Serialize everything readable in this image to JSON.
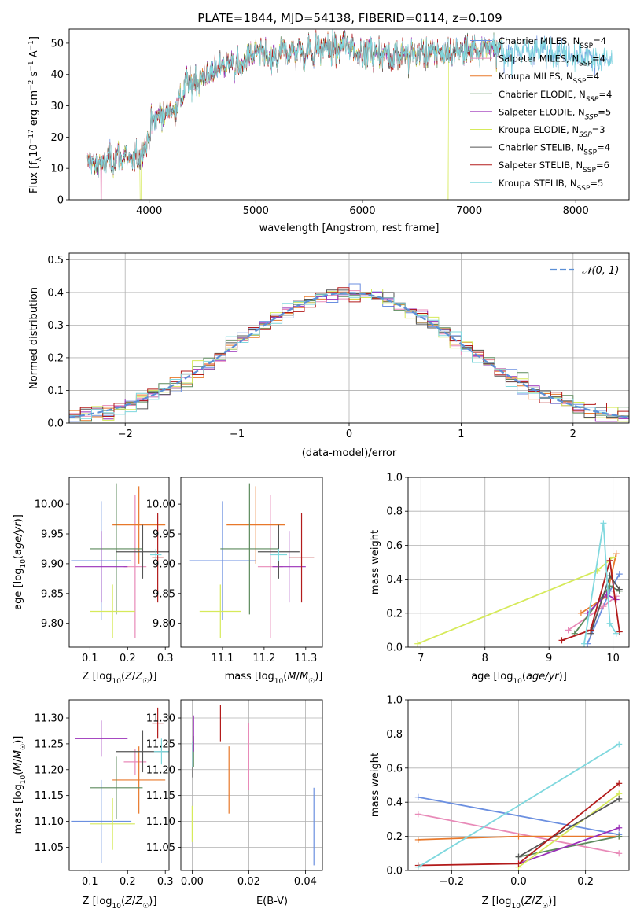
{
  "figure_title": "PLATE=1844, MJD=54138, FIBERID=0114, z=0.109",
  "colors": {
    "Chabrier MILES": "#6b8fe0",
    "Salpeter MILES": "#e88ab8",
    "Kroupa MILES": "#e8782a",
    "Chabrier ELODIE": "#5c8a5c",
    "Salpeter ELODIE": "#9a2fb8",
    "Kroupa ELODIE": "#d6ea5a",
    "Chabrier STELIB": "#555555",
    "Salpeter STELIB": "#b31b1b",
    "Kroupa STELIB": "#7fd8de",
    "normal": "#5b8fd6"
  },
  "chart_data": [
    {
      "id": "spectrum",
      "type": "line",
      "xlabel": "wavelength [Angstrom, rest frame]",
      "ylabel": "Flux [fλ10⁻¹⁷ erg cm⁻² s⁻¹ A⁻¹]",
      "xlim": [
        3250,
        8500
      ],
      "ylim": [
        0,
        54.5
      ],
      "xticks": [
        4000,
        5000,
        6000,
        7000,
        8000
      ],
      "yticks": [
        0,
        10,
        20,
        30,
        40,
        50
      ],
      "legend_position": "top-right",
      "continuum": {
        "x": [
          3450,
          3550,
          3650,
          3750,
          3850,
          3950,
          4050,
          4150,
          4250,
          4350,
          4450,
          4550,
          4650,
          4750,
          4850,
          4950,
          5050,
          5150,
          5250,
          5350,
          5450,
          5550,
          5650,
          5750,
          5850,
          5950,
          6050,
          6150,
          6250,
          6350,
          6450,
          6550,
          6650,
          6750,
          6850,
          6950,
          7050,
          7150,
          7250,
          7350,
          7450,
          7550,
          7650,
          7750,
          7850,
          7950,
          8050,
          8150,
          8250,
          8350
        ],
        "y": [
          12,
          11,
          13,
          14,
          12,
          16,
          26,
          28,
          29,
          37,
          38,
          40,
          42,
          44,
          42,
          46,
          47,
          44,
          47,
          48,
          47,
          48,
          49,
          48,
          50,
          47,
          47,
          47,
          46,
          47,
          46,
          47,
          47,
          47,
          47,
          48,
          48,
          49,
          48,
          46,
          48,
          47,
          48,
          47,
          47,
          47,
          46,
          46,
          44,
          45
        ]
      },
      "series": [
        {
          "name": "Chabrier MILES, N_SSP=4",
          "label_base": "Chabrier MILES, N",
          "label_sub": "SSP",
          "label_tail": "=4",
          "sub_italic": false
        },
        {
          "name": "Salpeter MILES, N_SSP=4",
          "label_base": "Salpeter MILES, N",
          "label_sub": "SSP",
          "label_tail": "=4",
          "sub_italic": false
        },
        {
          "name": "Kroupa MILES, N_SSP=4",
          "label_base": "Kroupa MILES, N",
          "label_sub": "SSP",
          "label_tail": "=4",
          "sub_italic": false
        },
        {
          "name": "Chabrier ELODIE, N_SSP=4",
          "label_base": "Chabrier ELODIE, N",
          "label_sub": "SSP",
          "label_tail": "=4",
          "sub_italic": true
        },
        {
          "name": "Salpeter ELODIE, N_SSP=5",
          "label_base": "Salpeter ELODIE, N",
          "label_sub": "SSP",
          "label_tail": "=5",
          "sub_italic": true
        },
        {
          "name": "Kroupa ELODIE, N_SSP=3",
          "label_base": "Kroupa ELODIE, N",
          "label_sub": "SSP",
          "label_tail": "=3",
          "sub_italic": true
        },
        {
          "name": "Chabrier STELIB, N_SSP=4",
          "label_base": "Chabrier STELIB, N",
          "label_sub": "SSP",
          "label_tail": "=4",
          "sub_italic": false
        },
        {
          "name": "Salpeter STELIB, N_SSP=6",
          "label_base": "Salpeter STELIB, N",
          "label_sub": "SSP",
          "label_tail": "=6",
          "sub_italic": false
        },
        {
          "name": "Kroupa STELIB, N_SSP=5",
          "label_base": "Kroupa STELIB, N",
          "label_sub": "SSP",
          "label_tail": "=5",
          "sub_italic": false
        }
      ],
      "dropouts": [
        {
          "series": "Salpeter MILES",
          "x": 3550
        },
        {
          "series": "Kroupa ELODIE",
          "x": 3920
        },
        {
          "series": "Kroupa ELODIE",
          "x": 6800
        },
        {
          "series": "Salpeter STELIB",
          "x": 7400
        }
      ]
    },
    {
      "id": "residuals",
      "type": "step",
      "xlabel": "(data-model)/error",
      "ylabel": "Normed distribution",
      "xlim": [
        -2.5,
        2.5
      ],
      "ylim": [
        0,
        0.52
      ],
      "xticks": [
        -2,
        -1,
        0,
        1,
        2
      ],
      "yticks": [
        0.0,
        0.1,
        0.2,
        0.3,
        0.4,
        0.5
      ],
      "grid": true,
      "legend_position": "top-right",
      "normal_label": "𝒩(0, 1)",
      "bin_edges_start": -2.5,
      "bin_width": 0.1
    },
    {
      "id": "age_vs_Z",
      "type": "errorbar",
      "xlabel": "Z [log10(Z/Z☉)]",
      "ylabel": "age [log10(age/yr)]",
      "xlim": [
        0.045,
        0.31
      ],
      "ylim": [
        9.76,
        10.045
      ],
      "xticks": [
        0.1,
        0.2,
        0.3
      ],
      "yticks": [
        9.8,
        9.85,
        9.9,
        9.95,
        10.0
      ],
      "points": [
        {
          "series": "Chabrier MILES",
          "x": 0.13,
          "xerr": 0.08,
          "y": 9.905,
          "yerr": 0.1
        },
        {
          "series": "Salpeter MILES",
          "x": 0.22,
          "xerr": 0.03,
          "y": 9.895,
          "yerr": 0.12
        },
        {
          "series": "Kroupa MILES",
          "x": 0.23,
          "xerr": 0.07,
          "y": 9.965,
          "yerr": 0.065
        },
        {
          "series": "Chabrier ELODIE",
          "x": 0.17,
          "xerr": 0.07,
          "y": 9.925,
          "yerr": 0.11
        },
        {
          "series": "Salpeter ELODIE",
          "x": 0.13,
          "xerr": 0.07,
          "y": 9.895,
          "yerr": 0.06
        },
        {
          "series": "Kroupa ELODIE",
          "x": 0.16,
          "xerr": 0.06,
          "y": 9.82,
          "yerr": 0.045
        },
        {
          "series": "Chabrier STELIB",
          "x": 0.24,
          "xerr": 0.07,
          "y": 9.92,
          "yerr": 0.045
        },
        {
          "series": "Salpeter STELIB",
          "x": 0.28,
          "xerr": 0.015,
          "y": 9.91,
          "yerr": 0.075
        },
        {
          "series": "Kroupa STELIB",
          "x": 0.275,
          "xerr": 0.015,
          "y": 9.915,
          "yerr": 0.01
        }
      ]
    },
    {
      "id": "age_vs_mass",
      "type": "errorbar",
      "xlabel": "mass [log10(M/M☉)]",
      "ylabel": "",
      "xlim": [
        11.0,
        11.34
      ],
      "ylim": [
        9.76,
        10.045
      ],
      "xticks": [
        11.1,
        11.2,
        11.3
      ],
      "yticks": [
        9.8,
        9.85,
        9.9,
        9.95,
        10.0
      ],
      "points": [
        {
          "series": "Chabrier MILES",
          "x": 11.1,
          "xerr": 0.08,
          "y": 9.905,
          "yerr": 0.1
        },
        {
          "series": "Salpeter MILES",
          "x": 11.215,
          "xerr": 0.03,
          "y": 9.895,
          "yerr": 0.12
        },
        {
          "series": "Kroupa MILES",
          "x": 11.18,
          "xerr": 0.07,
          "y": 9.965,
          "yerr": 0.065
        },
        {
          "series": "Chabrier ELODIE",
          "x": 11.165,
          "xerr": 0.07,
          "y": 9.925,
          "yerr": 0.11
        },
        {
          "series": "Salpeter ELODIE",
          "x": 11.26,
          "xerr": 0.04,
          "y": 9.895,
          "yerr": 0.06
        },
        {
          "series": "Kroupa ELODIE",
          "x": 11.095,
          "xerr": 0.05,
          "y": 9.82,
          "yerr": 0.045
        },
        {
          "series": "Chabrier STELIB",
          "x": 11.235,
          "xerr": 0.05,
          "y": 9.92,
          "yerr": 0.045
        },
        {
          "series": "Salpeter STELIB",
          "x": 11.29,
          "xerr": 0.03,
          "y": 9.91,
          "yerr": 0.075
        },
        {
          "series": "Kroupa STELIB",
          "x": 11.235,
          "xerr": 0.02,
          "y": 9.915,
          "yerr": 0.01
        }
      ]
    },
    {
      "id": "weight_vs_age",
      "type": "line",
      "xlabel": "age [log10(age/yr)]",
      "ylabel": "mass weight",
      "xlim": [
        6.8,
        10.25
      ],
      "ylim": [
        0,
        1
      ],
      "xticks": [
        7,
        8,
        9,
        10
      ],
      "yticks": [
        0.0,
        0.2,
        0.4,
        0.6,
        0.8,
        1.0
      ],
      "grid": true,
      "series": [
        {
          "series": "Chabrier MILES",
          "points": [
            [
              9.6,
              0.02
            ],
            [
              9.95,
              0.33
            ],
            [
              10.1,
              0.43
            ]
          ]
        },
        {
          "series": "Salpeter MILES",
          "points": [
            [
              9.3,
              0.1
            ],
            [
              9.85,
              0.24
            ],
            [
              10.05,
              0.3
            ]
          ]
        },
        {
          "series": "Kroupa MILES",
          "points": [
            [
              9.5,
              0.2
            ],
            [
              9.9,
              0.3
            ],
            [
              10.05,
              0.55
            ]
          ]
        },
        {
          "series": "Chabrier ELODIE",
          "points": [
            [
              9.4,
              0.08
            ],
            [
              9.95,
              0.36
            ],
            [
              10.1,
              0.33
            ]
          ]
        },
        {
          "series": "Salpeter ELODIE",
          "points": [
            [
              9.6,
              0.2
            ],
            [
              9.9,
              0.31
            ],
            [
              10.05,
              0.28
            ]
          ]
        },
        {
          "series": "Kroupa ELODIE",
          "points": [
            [
              6.95,
              0.02
            ],
            [
              9.75,
              0.45
            ],
            [
              10.0,
              0.53
            ]
          ]
        },
        {
          "series": "Chabrier STELIB",
          "points": [
            [
              9.65,
              0.08
            ],
            [
              9.95,
              0.42
            ],
            [
              10.1,
              0.34
            ]
          ]
        },
        {
          "series": "Salpeter STELIB",
          "points": [
            [
              9.2,
              0.04
            ],
            [
              9.65,
              0.1
            ],
            [
              9.95,
              0.51
            ],
            [
              10.1,
              0.09
            ]
          ]
        },
        {
          "series": "Kroupa STELIB",
          "points": [
            [
              9.55,
              0.02
            ],
            [
              9.85,
              0.73
            ],
            [
              9.95,
              0.14
            ],
            [
              10.05,
              0.08
            ]
          ]
        }
      ]
    },
    {
      "id": "mass_vs_Z",
      "type": "errorbar",
      "xlabel": "Z [log10(Z/Z☉)]",
      "ylabel": "mass [log10(M/M☉)]",
      "xlim": [
        0.045,
        0.31
      ],
      "ylim": [
        11.005,
        11.335
      ],
      "xticks": [
        0.1,
        0.2,
        0.3
      ],
      "yticks": [
        11.05,
        11.1,
        11.15,
        11.2,
        11.25,
        11.3
      ],
      "points": [
        {
          "series": "Chabrier MILES",
          "x": 0.13,
          "xerr": 0.08,
          "y": 11.1,
          "yerr": 0.08
        },
        {
          "series": "Salpeter MILES",
          "x": 0.22,
          "xerr": 0.03,
          "y": 11.215,
          "yerr": 0.025
        },
        {
          "series": "Kroupa MILES",
          "x": 0.23,
          "xerr": 0.07,
          "y": 11.18,
          "yerr": 0.065
        },
        {
          "series": "Chabrier ELODIE",
          "x": 0.17,
          "xerr": 0.07,
          "y": 11.165,
          "yerr": 0.06
        },
        {
          "series": "Salpeter ELODIE",
          "x": 0.13,
          "xerr": 0.07,
          "y": 11.26,
          "yerr": 0.035
        },
        {
          "series": "Kroupa ELODIE",
          "x": 0.16,
          "xerr": 0.06,
          "y": 11.095,
          "yerr": 0.05
        },
        {
          "series": "Chabrier STELIB",
          "x": 0.24,
          "xerr": 0.07,
          "y": 11.235,
          "yerr": 0.04
        },
        {
          "series": "Salpeter STELIB",
          "x": 0.28,
          "xerr": 0.015,
          "y": 11.29,
          "yerr": 0.03
        },
        {
          "series": "Kroupa STELIB",
          "x": 0.29,
          "xerr": 0.02,
          "y": 11.235,
          "yerr": 0.025
        }
      ]
    },
    {
      "id": "mass_vs_ebv",
      "type": "errorbar",
      "xlabel": "E(B-V)",
      "ylabel": "",
      "xlim": [
        -0.004,
        0.046
      ],
      "ylim": [
        11.005,
        11.335
      ],
      "xticks": [
        0.0,
        0.02,
        0.04
      ],
      "yticks": [
        11.05,
        11.1,
        11.15,
        11.2,
        11.25,
        11.3
      ],
      "grid": true,
      "points": [
        {
          "series": "Chabrier MILES",
          "x": 0.043,
          "xerr": 0,
          "y": 11.09,
          "yerr": 0.075
        },
        {
          "series": "Salpeter MILES",
          "x": 0.02,
          "xerr": 0,
          "y": 11.225,
          "yerr": 0.065
        },
        {
          "series": "Kroupa MILES",
          "x": 0.013,
          "xerr": 0,
          "y": 11.18,
          "yerr": 0.065
        },
        {
          "series": "Chabrier ELODIE",
          "x": 0.0005,
          "xerr": 0,
          "y": 11.235,
          "yerr": 0.03
        },
        {
          "series": "Salpeter ELODIE",
          "x": 0.0005,
          "xerr": 0,
          "y": 11.27,
          "yerr": 0.035
        },
        {
          "series": "Kroupa ELODIE",
          "x": 0.0,
          "xerr": 0,
          "y": 11.095,
          "yerr": 0.035
        },
        {
          "series": "Chabrier STELIB",
          "x": 0.0002,
          "xerr": 0,
          "y": 11.21,
          "yerr": 0.025
        },
        {
          "series": "Salpeter STELIB",
          "x": 0.01,
          "xerr": 0,
          "y": 11.29,
          "yerr": 0.035
        },
        {
          "series": "Kroupa STELIB",
          "x": 0.0002,
          "xerr": 0,
          "y": 11.23,
          "yerr": 0.025
        }
      ]
    },
    {
      "id": "weight_vs_Z",
      "type": "line",
      "xlabel": "Z [log10(Z/Z☉)]",
      "ylabel": "mass weight",
      "xlim": [
        -0.33,
        0.33
      ],
      "ylim": [
        0,
        1
      ],
      "xticks": [
        -0.2,
        0.0,
        0.2
      ],
      "yticks": [
        0.0,
        0.2,
        0.4,
        0.6,
        0.8,
        1.0
      ],
      "grid": true,
      "series": [
        {
          "series": "Chabrier MILES",
          "points": [
            [
              -0.3,
              0.43
            ],
            [
              0.3,
              0.21
            ]
          ]
        },
        {
          "series": "Salpeter MILES",
          "points": [
            [
              -0.3,
              0.33
            ],
            [
              0.3,
              0.1
            ]
          ]
        },
        {
          "series": "Kroupa MILES",
          "points": [
            [
              -0.3,
              0.18
            ],
            [
              0.0,
              0.2
            ],
            [
              0.3,
              0.2
            ]
          ]
        },
        {
          "series": "Chabrier ELODIE",
          "points": [
            [
              0.0,
              0.08
            ],
            [
              0.3,
              0.2
            ]
          ]
        },
        {
          "series": "Salpeter ELODIE",
          "points": [
            [
              0.0,
              0.04
            ],
            [
              0.3,
              0.25
            ]
          ]
        },
        {
          "series": "Kroupa ELODIE",
          "points": [
            [
              0.0,
              0.02
            ],
            [
              0.3,
              0.45
            ]
          ]
        },
        {
          "series": "Chabrier STELIB",
          "points": [
            [
              0.0,
              0.08
            ],
            [
              0.3,
              0.42
            ]
          ]
        },
        {
          "series": "Salpeter STELIB",
          "points": [
            [
              -0.3,
              0.03
            ],
            [
              0.0,
              0.04
            ],
            [
              0.3,
              0.51
            ]
          ]
        },
        {
          "series": "Kroupa STELIB",
          "points": [
            [
              -0.3,
              0.02
            ],
            [
              0.3,
              0.74
            ]
          ]
        }
      ]
    }
  ]
}
